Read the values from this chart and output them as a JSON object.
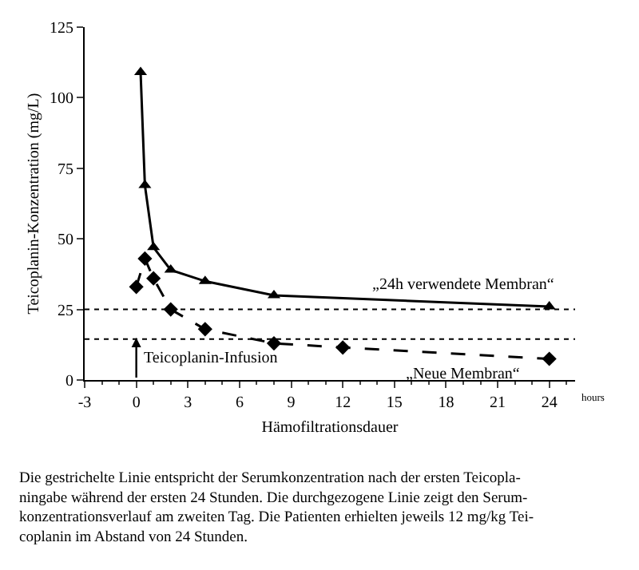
{
  "chart_data": {
    "type": "line",
    "ylabel": "Teicoplanin-Konzentration (mg/L)",
    "xlabel": "Hämofiltrationsdauer",
    "xlim": [
      -3,
      25.5
    ],
    "xticks": [
      -3,
      0,
      3,
      6,
      9,
      12,
      15,
      18,
      21,
      24
    ],
    "ylim": [
      0,
      125
    ],
    "yticks": [
      0,
      25,
      50,
      75,
      100,
      125
    ],
    "series": [
      {
        "name": "„24h verwendete Membran“",
        "color": "#000000",
        "marker": "triangle",
        "line_style": "solid",
        "x": [
          0.25,
          0.5,
          1,
          2,
          4,
          8,
          24
        ],
        "values": [
          109,
          69,
          47,
          39,
          35,
          30,
          26
        ]
      },
      {
        "name": "„Neue Membran“",
        "color": "#000000",
        "marker": "diamond",
        "line_style": "dashed",
        "x": [
          0,
          0.5,
          1,
          2,
          4,
          8,
          12,
          24
        ],
        "values": [
          33,
          43,
          36,
          25,
          18,
          13,
          11.5,
          7.5
        ]
      }
    ],
    "ref_lines": [
      {
        "axis": "y",
        "value": 25,
        "line_style": "dotted",
        "color": "#000000"
      },
      {
        "axis": "y",
        "value": 14.5,
        "line_style": "dotted",
        "color": "#000000"
      }
    ],
    "annotations": [
      {
        "text": "Teicoplanin-Infusion",
        "x": 0,
        "y": 15
      },
      "hours",
      "Die gestrichelte Linie entspricht der Serumkonzentration nach der ersten Teicopla-\nningabe während der ersten 24 Stunden. Die durchgezogene Linie zeigt den Serum-\nkonzentrationsverlauf am zweiten Tag. Die Patienten erhielten jeweils 12 mg/kg Tei-\ncoplanin im Abstand von 24 Stunden."
    ],
    "legend": false
  }
}
